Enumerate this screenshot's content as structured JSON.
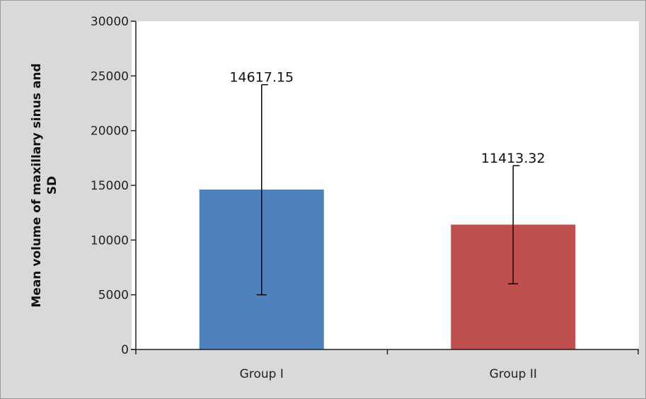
{
  "chart_data": {
    "type": "bar",
    "title": "",
    "xlabel": "",
    "ylabel_lines": [
      "Mean volume of maxillary sinus and",
      "SD"
    ],
    "categories": [
      "Group I",
      "Group II"
    ],
    "series": [
      {
        "values": [
          14617.15,
          11413.32
        ],
        "error_low": [
          5000,
          6000
        ],
        "error_high": [
          24200,
          16800
        ],
        "colors": [
          "#4f81bd",
          "#c0504d"
        ]
      }
    ],
    "data_labels": [
      "14617.15",
      "11413.32"
    ],
    "ylim": [
      0,
      30000
    ],
    "yticks": [
      0,
      5000,
      10000,
      15000,
      20000,
      25000,
      30000
    ],
    "grid": false,
    "legend": "none",
    "plot_background": "#ffffff",
    "frame_background": "#d9d9d9"
  }
}
